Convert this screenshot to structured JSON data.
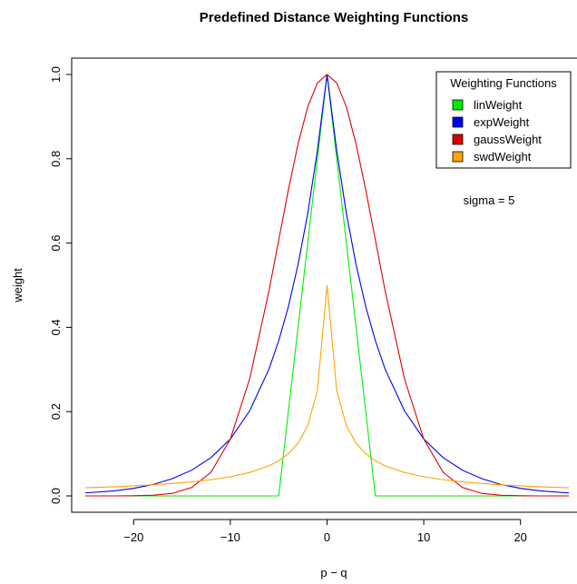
{
  "chart_data": {
    "type": "line",
    "title": "Predefined Distance Weighting Functions",
    "xlabel": "p − q",
    "ylabel": "weight",
    "xlim": [
      -25,
      25
    ],
    "ylim": [
      0,
      1
    ],
    "xticks": [
      -20,
      -10,
      0,
      10,
      20
    ],
    "xtick_labels": [
      "−20",
      "−10",
      "0",
      "10",
      "20"
    ],
    "yticks": [
      0,
      0.2,
      0.4,
      0.6,
      0.8,
      1
    ],
    "ytick_labels": [
      "0.0",
      "0.2",
      "0.4",
      "0.6",
      "0.8",
      "1.0"
    ],
    "grid": false,
    "legend": {
      "title": "Weighting Functions",
      "position": "top-right"
    },
    "annotation": "sigma = 5",
    "x": [
      -25,
      -22,
      -20,
      -18,
      -16,
      -14,
      -12,
      -10,
      -8,
      -6,
      -5,
      -4,
      -3,
      -2,
      -1,
      0,
      1,
      2,
      3,
      4,
      5,
      6,
      8,
      10,
      12,
      14,
      16,
      18,
      20,
      22,
      25
    ],
    "series": [
      {
        "name": "linWeight",
        "color": "#00ee00",
        "values": [
          0,
          0,
          0,
          0,
          0,
          0,
          0,
          0,
          0,
          0,
          0,
          0.2,
          0.4,
          0.6,
          0.8,
          1.0,
          0.8,
          0.6,
          0.4,
          0.2,
          0,
          0,
          0,
          0,
          0,
          0,
          0,
          0,
          0,
          0,
          0
        ]
      },
      {
        "name": "expWeight",
        "color": "#0000ee",
        "values": [
          0.007,
          0.012,
          0.018,
          0.027,
          0.041,
          0.061,
          0.091,
          0.135,
          0.202,
          0.301,
          0.368,
          0.449,
          0.549,
          0.67,
          0.819,
          1.0,
          0.819,
          0.67,
          0.549,
          0.449,
          0.368,
          0.301,
          0.202,
          0.135,
          0.091,
          0.061,
          0.041,
          0.027,
          0.018,
          0.012,
          0.007
        ]
      },
      {
        "name": "gaussWeight",
        "color": "#dd0000",
        "values": [
          0.0,
          0.0,
          0.0003,
          0.0016,
          0.006,
          0.02,
          0.056,
          0.135,
          0.278,
          0.487,
          0.607,
          0.726,
          0.835,
          0.923,
          0.98,
          1.0,
          0.98,
          0.923,
          0.835,
          0.726,
          0.607,
          0.487,
          0.278,
          0.135,
          0.056,
          0.02,
          0.006,
          0.0016,
          0.0003,
          0.0,
          0.0
        ]
      },
      {
        "name": "swdWeight",
        "color": "#ffa500",
        "values": [
          0.0192,
          0.0217,
          0.0238,
          0.0263,
          0.0294,
          0.0333,
          0.0385,
          0.0455,
          0.0556,
          0.0714,
          0.0833,
          0.1,
          0.125,
          0.1667,
          0.25,
          0.5,
          0.25,
          0.1667,
          0.125,
          0.1,
          0.0833,
          0.0714,
          0.0556,
          0.0455,
          0.0385,
          0.0333,
          0.0294,
          0.0263,
          0.0238,
          0.0217,
          0.0192
        ]
      }
    ]
  }
}
